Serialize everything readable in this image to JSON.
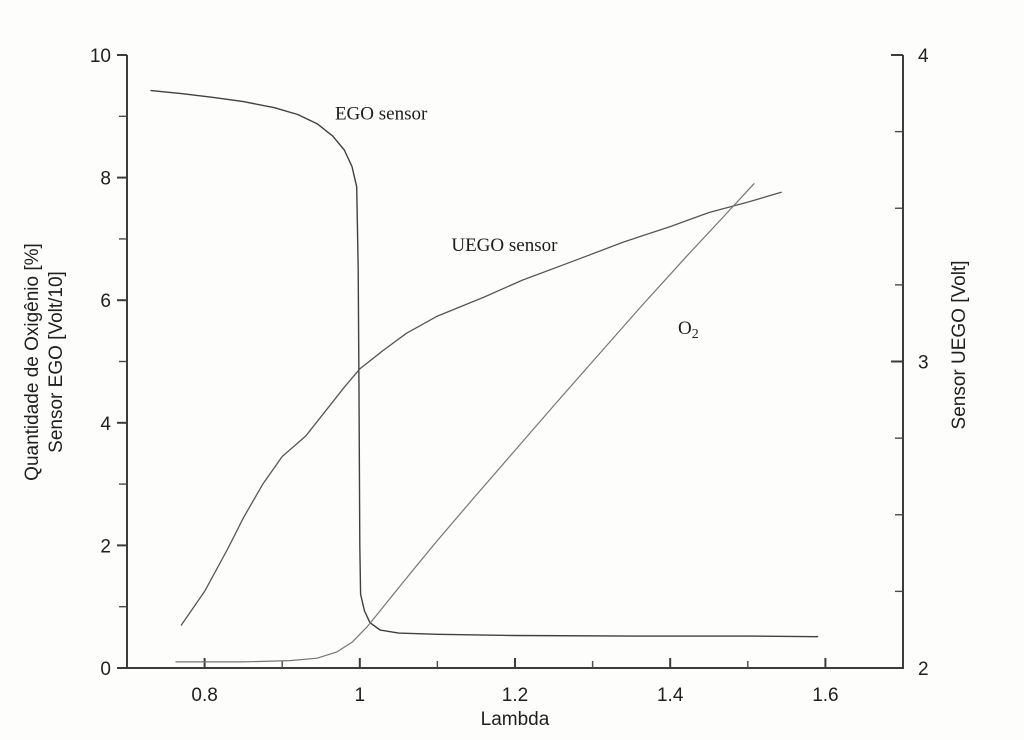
{
  "figure": {
    "background": "#fdfdfc",
    "ink": "#2f2f2f"
  },
  "chart_data": {
    "type": "line",
    "title": "",
    "xlabel": "Lambda",
    "ylabel_left_line1": "Quantidade de Oxigênio [%]",
    "ylabel_left_line2": "Sensor EGO [Volt/10]",
    "ylabel_right": "Sensor UEGO [Volt]",
    "grid": false,
    "legend_position": "inline-annotations",
    "axes": {
      "x": {
        "range": [
          0.7,
          1.7
        ],
        "ticks_major": [
          0.8,
          1.0,
          1.2,
          1.4,
          1.6
        ],
        "tick_labels": [
          "0.8",
          "1",
          "1.2",
          "1.4",
          "1.6"
        ],
        "ticks_minor": [
          0.9,
          1.1,
          1.3,
          1.5
        ]
      },
      "y_left": {
        "range": [
          0,
          10
        ],
        "ticks_major": [
          0,
          2,
          4,
          6,
          8,
          10
        ],
        "tick_labels": [
          "0",
          "2",
          "4",
          "6",
          "8",
          "10"
        ],
        "ticks_minor": [
          1,
          3,
          5,
          7,
          9
        ]
      },
      "y_right": {
        "range": [
          2,
          4
        ],
        "ticks_major": [
          2,
          3,
          4
        ],
        "tick_labels": [
          "2",
          "3",
          "4"
        ],
        "ticks_minor": [
          2.25,
          2.5,
          2.75,
          3.25,
          3.5,
          3.75
        ]
      }
    },
    "series": [
      {
        "name": "EGO sensor",
        "units": "left axis (Volt/10)",
        "color": "#404040",
        "width": 1.4,
        "points": [
          [
            0.731,
            9.42
          ],
          [
            0.77,
            9.37
          ],
          [
            0.81,
            9.31
          ],
          [
            0.85,
            9.24
          ],
          [
            0.89,
            9.14
          ],
          [
            0.92,
            9.03
          ],
          [
            0.945,
            8.88
          ],
          [
            0.965,
            8.68
          ],
          [
            0.98,
            8.45
          ],
          [
            0.99,
            8.18
          ],
          [
            0.996,
            7.85
          ],
          [
            0.998,
            6.5
          ],
          [
            0.999,
            4.5
          ],
          [
            1.0,
            2.0
          ],
          [
            1.001,
            1.2
          ],
          [
            1.006,
            0.93
          ],
          [
            1.013,
            0.74
          ],
          [
            1.026,
            0.62
          ],
          [
            1.05,
            0.57
          ],
          [
            1.1,
            0.55
          ],
          [
            1.2,
            0.53
          ],
          [
            1.35,
            0.52
          ],
          [
            1.5,
            0.52
          ],
          [
            1.59,
            0.51
          ]
        ]
      },
      {
        "name": "UEGO sensor",
        "units": "right axis; UEGO volts = 2 + (left value)/5",
        "color": "#565656",
        "width": 1.3,
        "points": [
          [
            0.77,
            0.7
          ],
          [
            0.8,
            1.25
          ],
          [
            0.83,
            1.95
          ],
          [
            0.85,
            2.45
          ],
          [
            0.875,
            3.0
          ],
          [
            0.9,
            3.45
          ],
          [
            0.93,
            3.78
          ],
          [
            0.955,
            4.18
          ],
          [
            0.98,
            4.58
          ],
          [
            1.0,
            4.88
          ],
          [
            1.03,
            5.18
          ],
          [
            1.06,
            5.46
          ],
          [
            1.1,
            5.74
          ],
          [
            1.16,
            6.05
          ],
          [
            1.21,
            6.33
          ],
          [
            1.28,
            6.66
          ],
          [
            1.34,
            6.95
          ],
          [
            1.4,
            7.2
          ],
          [
            1.45,
            7.43
          ],
          [
            1.5,
            7.6
          ],
          [
            1.543,
            7.76
          ]
        ]
      },
      {
        "name": "O2",
        "units": "left axis (%)",
        "color": "#757575",
        "width": 1.2,
        "points": [
          [
            0.763,
            0.1
          ],
          [
            0.85,
            0.1
          ],
          [
            0.91,
            0.12
          ],
          [
            0.945,
            0.16
          ],
          [
            0.97,
            0.26
          ],
          [
            0.99,
            0.42
          ],
          [
            1.01,
            0.68
          ],
          [
            1.04,
            1.15
          ],
          [
            1.07,
            1.62
          ],
          [
            1.1,
            2.08
          ],
          [
            1.15,
            2.82
          ],
          [
            1.2,
            3.55
          ],
          [
            1.25,
            4.28
          ],
          [
            1.3,
            5.0
          ],
          [
            1.364,
            5.92
          ],
          [
            1.42,
            6.7
          ],
          [
            1.47,
            7.38
          ],
          [
            1.508,
            7.9
          ]
        ]
      }
    ],
    "annotations": [
      {
        "text": "EGO sensor",
        "sub": "",
        "x": 0.968,
        "y": 8.95,
        "anchor": "start"
      },
      {
        "text": "UEGO sensor",
        "sub": "",
        "x": 1.118,
        "y": 6.8,
        "anchor": "start"
      },
      {
        "text": "O",
        "sub": "2",
        "x": 1.41,
        "y": 5.45,
        "anchor": "start"
      }
    ]
  }
}
